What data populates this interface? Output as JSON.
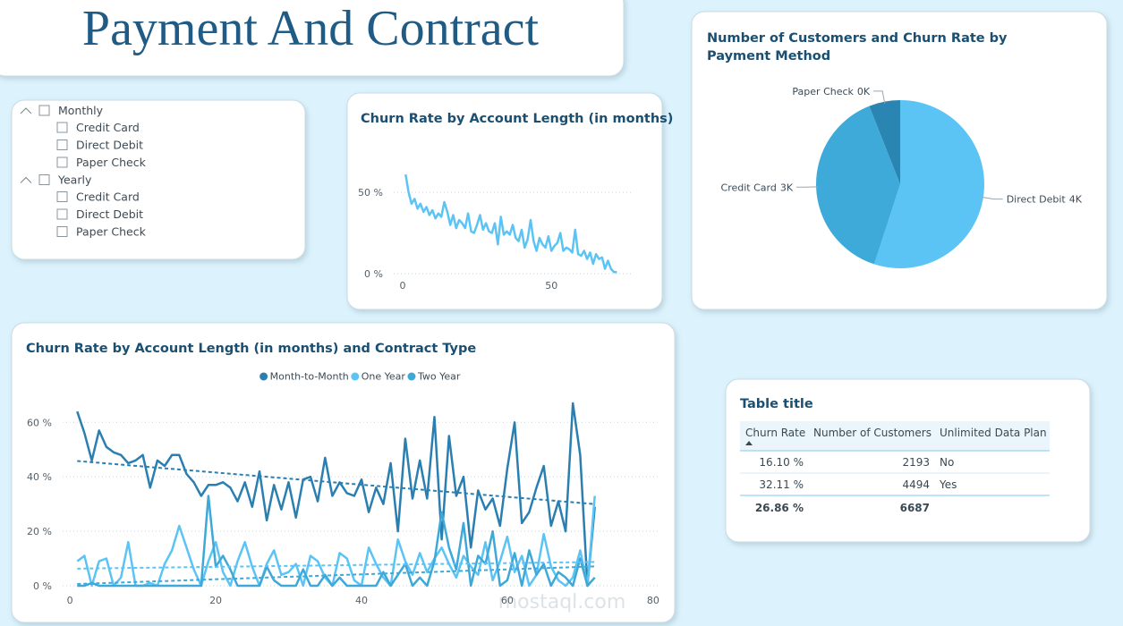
{
  "header": {
    "title": "Payment And Contract"
  },
  "slicer": {
    "groups": [
      {
        "label": "Monthly",
        "items": [
          "Credit Card",
          "Direct Debit",
          "Paper Check"
        ]
      },
      {
        "label": "Yearly",
        "items": [
          "Credit Card",
          "Direct Debit",
          "Paper Check"
        ]
      }
    ]
  },
  "chart_data": [
    {
      "type": "line",
      "title": "Churn Rate by Account Length (in months)",
      "color": "#5bc4f5",
      "x": [
        1,
        2,
        3,
        4,
        5,
        6,
        7,
        8,
        9,
        10,
        11,
        12,
        13,
        14,
        15,
        16,
        17,
        18,
        19,
        20,
        21,
        22,
        23,
        24,
        25,
        26,
        27,
        28,
        29,
        30,
        31,
        32,
        33,
        34,
        35,
        36,
        37,
        38,
        39,
        40,
        41,
        42,
        43,
        44,
        45,
        46,
        47,
        48,
        49,
        50,
        51,
        52,
        53,
        54,
        55,
        56,
        57,
        58,
        59,
        60,
        61,
        62,
        63,
        64,
        65,
        66,
        67,
        68,
        69,
        70,
        71,
        72
      ],
      "values": [
        61,
        50,
        43,
        46,
        40,
        43,
        38,
        41,
        36,
        39,
        34,
        37,
        35,
        44,
        38,
        30,
        36,
        28,
        33,
        31,
        28,
        37,
        26,
        25,
        30,
        36,
        27,
        31,
        26,
        25,
        31,
        18,
        35,
        24,
        26,
        24,
        30,
        22,
        20,
        27,
        16,
        21,
        33,
        20,
        14,
        22,
        18,
        16,
        23,
        14,
        17,
        19,
        25,
        14,
        16,
        15,
        13,
        27,
        12,
        11,
        14,
        9,
        13,
        6,
        12,
        9,
        10,
        3,
        8,
        3,
        1,
        1
      ],
      "xlim": [
        -3,
        77
      ],
      "ylim": [
        0,
        66
      ],
      "xticks": [
        0,
        50
      ],
      "yticks": [
        {
          "value": 0,
          "label": "0 %"
        },
        {
          "value": 50,
          "label": "50 %"
        }
      ],
      "grid": true
    },
    {
      "type": "pie",
      "title": "Number of Customers and Churn Rate by Payment Method",
      "categories": [
        "Direct Debit",
        "Credit Card",
        "Paper Check"
      ],
      "values": [
        3678,
        2608,
        401
      ],
      "value_labels": [
        "4K",
        "3K",
        "0K"
      ],
      "colors": [
        "#5bc4f5",
        "#3eaad9",
        "#2a85b2"
      ]
    },
    {
      "type": "line",
      "title": "Churn Rate by Account Length (in months) and Contract Type",
      "x": [
        1,
        2,
        3,
        4,
        5,
        6,
        7,
        8,
        9,
        10,
        11,
        12,
        13,
        14,
        15,
        16,
        17,
        18,
        19,
        20,
        21,
        22,
        23,
        24,
        25,
        26,
        27,
        28,
        29,
        30,
        31,
        32,
        33,
        34,
        35,
        36,
        37,
        38,
        39,
        40,
        41,
        42,
        43,
        44,
        45,
        46,
        47,
        48,
        49,
        50,
        51,
        52,
        53,
        54,
        55,
        56,
        57,
        58,
        59,
        60,
        61,
        62,
        63,
        64,
        65,
        66,
        67,
        68,
        69,
        70,
        71,
        72
      ],
      "series": [
        {
          "name": "Month-to-Month",
          "color": "#2a7fb0",
          "values": [
            64,
            56,
            46,
            57,
            51,
            49,
            48,
            45,
            46,
            48,
            36,
            46,
            44,
            48,
            48,
            41,
            38,
            33,
            37,
            37,
            38,
            36,
            31,
            38,
            29,
            42,
            24,
            37,
            28,
            38,
            25,
            39,
            40,
            31,
            47,
            33,
            38,
            34,
            33,
            39,
            27,
            36,
            30,
            45,
            20,
            54,
            32,
            46,
            32,
            62,
            17,
            55,
            33,
            40,
            14,
            35,
            28,
            32,
            22,
            43,
            60,
            23,
            27,
            36,
            44,
            22,
            31,
            20,
            67,
            48,
            0,
            29
          ]
        },
        {
          "name": "One Year",
          "color": "#5bc4f5",
          "values": [
            9,
            11,
            0,
            9,
            10,
            0,
            3,
            16,
            0,
            0,
            1,
            0,
            8,
            13,
            22,
            14,
            6,
            0,
            9,
            16,
            5,
            0,
            9,
            16,
            7,
            0,
            8,
            13,
            4,
            5,
            8,
            0,
            11,
            9,
            3,
            0,
            12,
            10,
            2,
            0,
            14,
            8,
            3,
            0,
            17,
            9,
            4,
            12,
            5,
            10,
            14,
            8,
            3,
            11,
            7,
            4,
            16,
            2,
            9,
            18,
            5,
            11,
            0,
            4,
            19,
            7,
            2,
            0,
            3,
            13,
            0,
            33
          ]
        },
        {
          "name": "Two Year",
          "color": "#3ea8d8",
          "values": [
            0,
            0,
            1,
            0,
            0,
            0,
            0,
            0,
            0,
            0,
            0,
            0,
            0,
            0,
            0,
            0,
            0,
            0,
            33,
            7,
            11,
            6,
            0,
            0,
            0,
            0,
            7,
            2,
            0,
            0,
            0,
            6,
            0,
            0,
            4,
            0,
            3,
            0,
            0,
            0,
            0,
            0,
            5,
            0,
            4,
            8,
            0,
            3,
            0,
            9,
            27,
            14,
            6,
            23,
            0,
            11,
            8,
            20,
            0,
            2,
            12,
            0,
            13,
            4,
            8,
            0,
            5,
            3,
            0,
            10,
            0,
            3
          ]
        }
      ],
      "xlim": [
        -1,
        81
      ],
      "ylim": [
        -1,
        66
      ],
      "xticks": [
        0,
        20,
        40,
        60,
        80
      ],
      "yticks": [
        {
          "value": 0,
          "label": "0 %"
        },
        {
          "value": 20,
          "label": "20 %"
        },
        {
          "value": 40,
          "label": "40 %"
        },
        {
          "value": 60,
          "label": "60 %"
        }
      ],
      "grid": true,
      "trendlines": true,
      "legend": "top"
    }
  ],
  "table": {
    "title": "Table title",
    "columns": [
      "Churn Rate",
      "Number of Customers",
      "Unlimited Data Plan"
    ],
    "rows": [
      [
        "16.10 %",
        "2193",
        "No"
      ],
      [
        "32.11 %",
        "4494",
        "Yes"
      ]
    ],
    "total": [
      "26.86 %",
      "6687"
    ]
  },
  "watermark": "mostaql.com"
}
